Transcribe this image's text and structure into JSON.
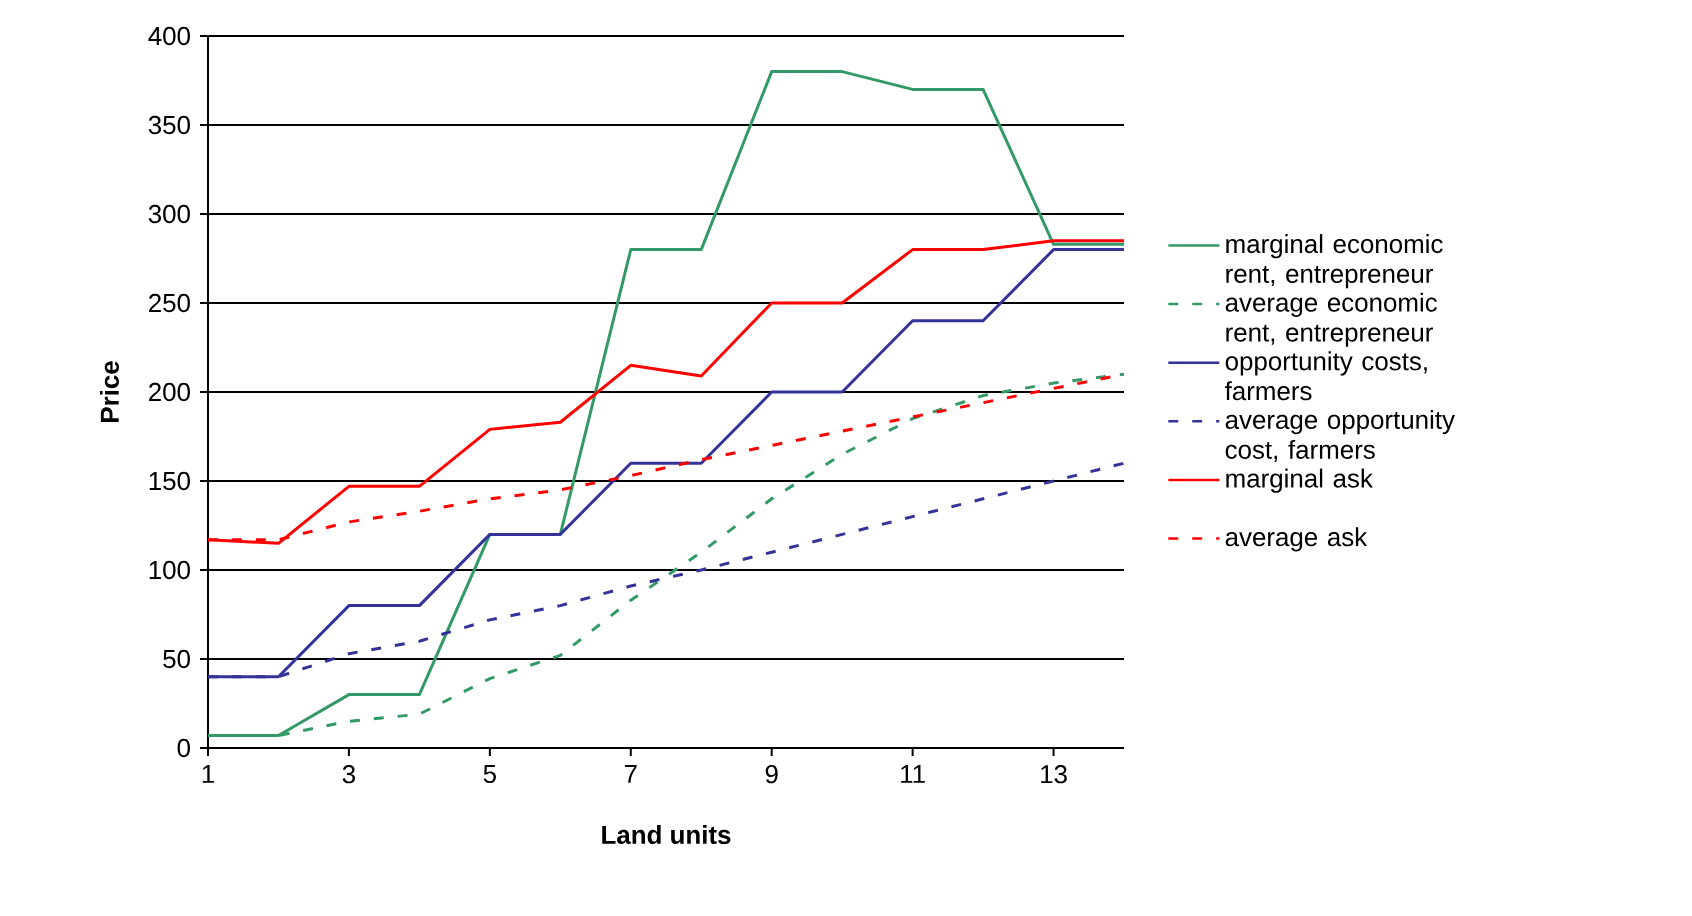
{
  "chart_data": {
    "type": "line",
    "xlabel": "**Land units**",
    "ylabel": "**Price**",
    "x": [
      1,
      2,
      3,
      4,
      5,
      6,
      7,
      8,
      9,
      10,
      11,
      12,
      13,
      14
    ],
    "series": [
      {
        "name": "marginal economic rent, entrepreneur",
        "color": "#339966",
        "line_style": "solid",
        "values": [
          7,
          7,
          30,
          30,
          120,
          120,
          280,
          280,
          380,
          380,
          370,
          370,
          283,
          283
        ]
      },
      {
        "name": "average economic rent, entrepreneur",
        "color": "#339966",
        "line_style": "dashed",
        "values": [
          7,
          7,
          15,
          19,
          39,
          52,
          83,
          110,
          140,
          165,
          185,
          198,
          205,
          210
        ]
      },
      {
        "name": "opportunity costs, farmers",
        "color": "#333399",
        "line_style": "solid",
        "values": [
          40,
          40,
          80,
          80,
          120,
          120,
          160,
          160,
          200,
          200,
          240,
          240,
          280,
          280
        ]
      },
      {
        "name": "average opportunity cost, farmers",
        "color": "#333399",
        "line_style": "dashed",
        "values": [
          40,
          40,
          53,
          60,
          72,
          80,
          91,
          100,
          110,
          120,
          130,
          140,
          150,
          160
        ]
      },
      {
        "name": "marginal ask",
        "color": "#ff0000",
        "line_style": "solid",
        "values": [
          117,
          115,
          147,
          147,
          179,
          183,
          215,
          209,
          250,
          250,
          280,
          280,
          285,
          285
        ]
      },
      {
        "name": "average ask",
        "color": "#ff0000",
        "line_style": "dashed",
        "values": [
          117,
          117,
          127,
          133,
          140,
          145,
          153,
          162,
          170,
          178,
          186,
          194,
          202,
          210
        ]
      }
    ],
    "xlim": [
      1,
      14
    ],
    "xticks": [
      1,
      3,
      5,
      7,
      9,
      11,
      13
    ],
    "ylim": [
      0,
      400
    ],
    "yticks": [
      0,
      50,
      100,
      150,
      200,
      250,
      300,
      350,
      400
    ],
    "grid": "y",
    "legend": "right",
    "marker": "none"
  }
}
